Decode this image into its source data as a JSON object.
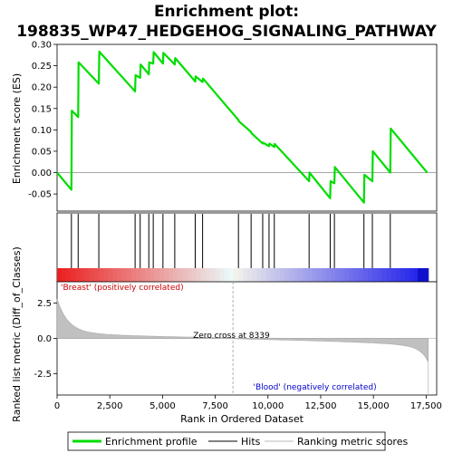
{
  "chart_data": {
    "type": "line",
    "title_line1": "Enrichment plot:",
    "title_line2": "198835_WP47_HEDGEHOG_SIGNALING_PATHWAY",
    "xlabel": "Rank in Ordered Dataset",
    "es_ylabel": "Enrichment score (ES)",
    "metric_ylabel": "Ranked list metric (Diff_of_Classes)",
    "xlim": [
      0,
      18000
    ],
    "x_ticks": [
      0,
      2500,
      5000,
      7500,
      10000,
      12500,
      15000,
      17500
    ],
    "x_tick_labels": [
      "0",
      "2,500",
      "5,000",
      "7,500",
      "10,000",
      "12,500",
      "15,000",
      "17,500"
    ],
    "es_ylim": [
      -0.09,
      0.3
    ],
    "es_ticks": [
      -0.05,
      0.0,
      0.05,
      0.1,
      0.15,
      0.2,
      0.25,
      0.3
    ],
    "es_tick_labels": [
      "-0.05",
      "0.00",
      "0.05",
      "0.10",
      "0.15",
      "0.20",
      "0.25",
      "0.30"
    ],
    "metric_ylim": [
      -4.0,
      4.0
    ],
    "metric_ticks": [
      2.5,
      0.0,
      -2.5
    ],
    "metric_tick_labels": [
      "2.5",
      "0.0",
      "-2.5"
    ],
    "series": [
      {
        "name": "Enrichment profile",
        "color": "#00dd00",
        "x": [
          0,
          680,
          700,
          1000,
          1020,
          1980,
          2000,
          3700,
          3720,
          3940,
          3960,
          4350,
          4370,
          4560,
          4580,
          5020,
          5040,
          5580,
          5600,
          6550,
          6570,
          6900,
          6920,
          8600,
          8620,
          9200,
          9220,
          9750,
          9770,
          10050,
          10070,
          10300,
          10320,
          11950,
          11970,
          12950,
          12970,
          13150,
          13170,
          14550,
          14570,
          14950,
          14970,
          15800,
          15820,
          17550
        ],
        "y": [
          0.0,
          -0.04,
          0.145,
          0.13,
          0.258,
          0.208,
          0.283,
          0.19,
          0.228,
          0.222,
          0.253,
          0.23,
          0.258,
          0.255,
          0.282,
          0.255,
          0.28,
          0.253,
          0.268,
          0.213,
          0.225,
          0.212,
          0.22,
          0.123,
          0.12,
          0.095,
          0.092,
          0.068,
          0.07,
          0.062,
          0.068,
          0.06,
          0.067,
          -0.02,
          0.0,
          -0.06,
          -0.02,
          -0.025,
          0.013,
          -0.07,
          -0.005,
          -0.02,
          0.05,
          0.0,
          0.103,
          0.0
        ]
      }
    ],
    "hits": [
      680,
      1000,
      1980,
      3700,
      3940,
      4350,
      4560,
      5020,
      5580,
      6550,
      6900,
      8600,
      9200,
      9750,
      10050,
      10300,
      11950,
      12950,
      13150,
      14550,
      14950,
      15800
    ],
    "zero_cross": 8339,
    "zero_cross_label": "Zero cross at 8339",
    "positive_label": "'Breast' (positively correlated)",
    "negative_label": "'Blood' (negatively correlated)",
    "positive_color": "#cc0000",
    "negative_color": "#0000cc",
    "legend": [
      {
        "label": "Enrichment profile",
        "color": "#00dd00"
      },
      {
        "label": "Hits",
        "color": "#000000"
      },
      {
        "label": "Ranking metric scores",
        "color": "#bbbbbb"
      }
    ]
  }
}
